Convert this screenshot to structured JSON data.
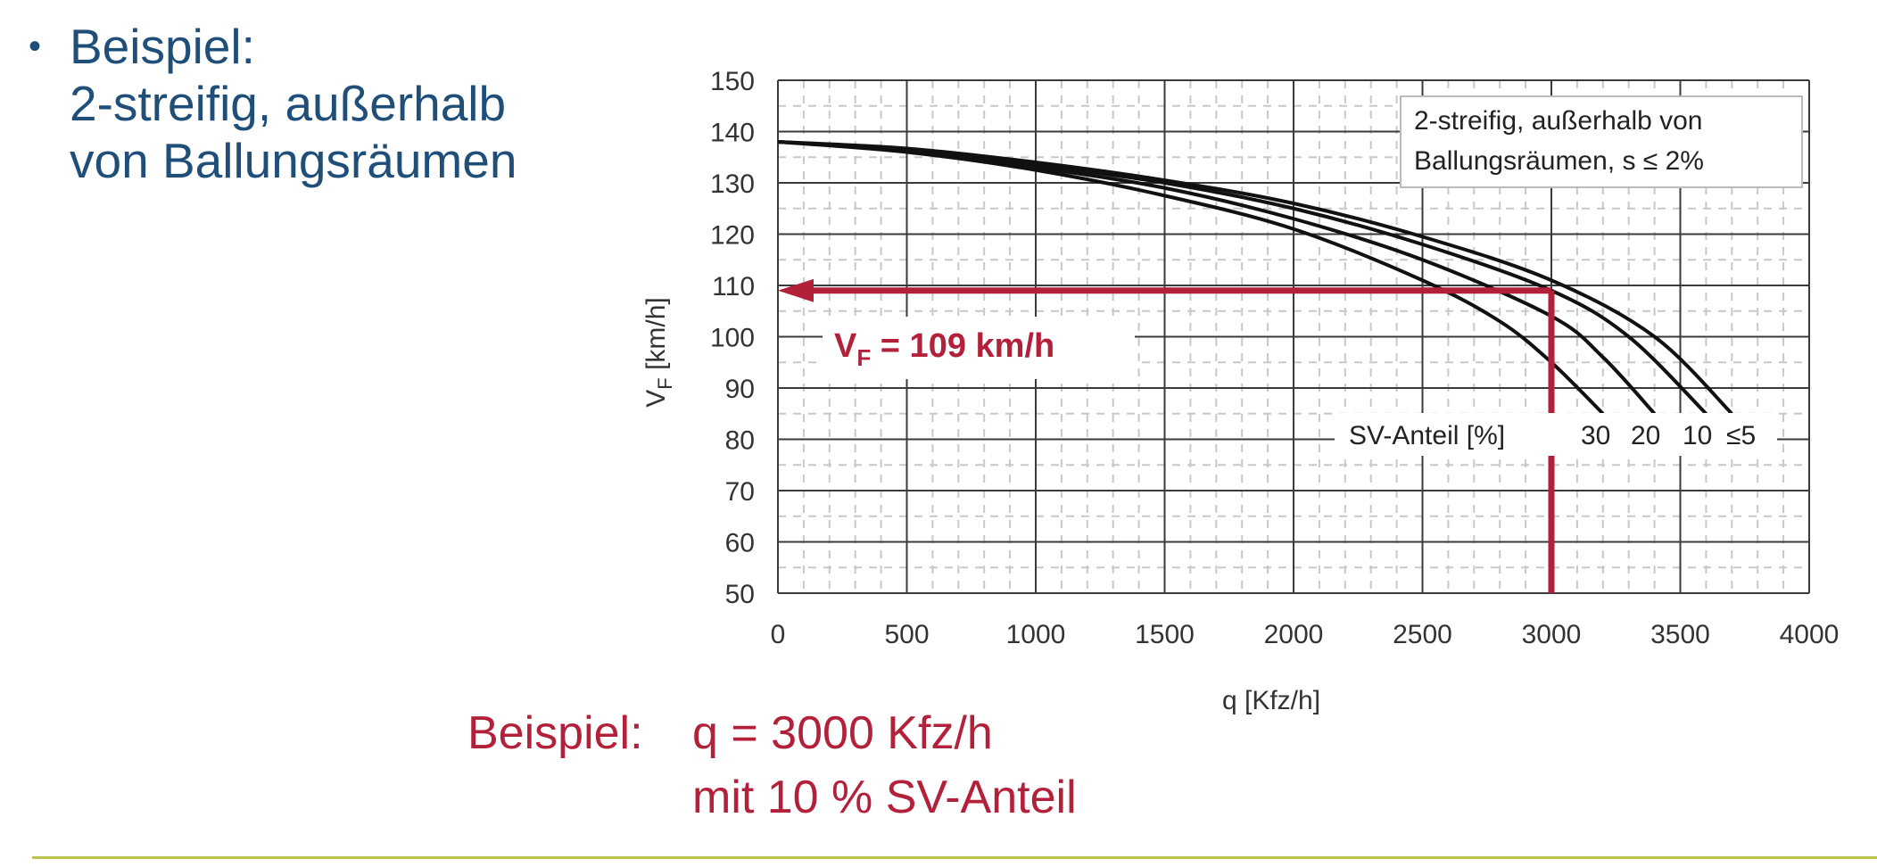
{
  "bullet": {
    "marker": "•",
    "lines": [
      "Beispiel:",
      "2-streifig, außerhalb",
      "von Ballungsräumen"
    ]
  },
  "example": {
    "label": "Beispiel:",
    "line1": "q = 3000 Kfz/h",
    "line2": "mit 10 % SV-Anteil"
  },
  "colors": {
    "title_blue": "#1f4e79",
    "accent_red": "#b2203a",
    "curve_black": "#111111",
    "footer_line": "#b7c34a"
  },
  "chart_data": {
    "type": "line",
    "xlabel": "q [Kfz/h]",
    "ylabel": "VF [km/h]",
    "xlim": [
      0,
      4000
    ],
    "ylim": [
      50,
      150
    ],
    "x_ticks": [
      0,
      500,
      1000,
      1500,
      2000,
      2500,
      3000,
      3500,
      4000
    ],
    "y_ticks": [
      50,
      60,
      70,
      80,
      90,
      100,
      110,
      120,
      130,
      140,
      150
    ],
    "grid": true,
    "legend_box": {
      "line1": "2-streifig, außerhalb von",
      "line2": "Ballungsräumen, s ≤ 2%",
      "placement": "top-right"
    },
    "series_label_prefix": "SV-Anteil [%]",
    "series": [
      {
        "name": "30",
        "x": [
          0,
          500,
          1000,
          1500,
          2000,
          2500,
          2800,
          3000,
          3200
        ],
        "y": [
          138,
          136,
          132.5,
          127.5,
          121,
          111,
          103,
          95,
          85
        ]
      },
      {
        "name": "20",
        "x": [
          0,
          500,
          1000,
          1500,
          2000,
          2500,
          3000,
          3200,
          3400
        ],
        "y": [
          138,
          136.3,
          133,
          129,
          123,
          115,
          104,
          96,
          85
        ]
      },
      {
        "name": "10",
        "x": [
          0,
          500,
          1000,
          1500,
          2000,
          2500,
          3000,
          3300,
          3600
        ],
        "y": [
          138,
          136.5,
          133.5,
          130,
          125,
          118,
          109,
          100,
          85
        ]
      },
      {
        "name": "≤5",
        "x": [
          0,
          500,
          1000,
          1500,
          2000,
          2500,
          3000,
          3400,
          3700
        ],
        "y": [
          138,
          136.7,
          134,
          130.5,
          126,
          119.5,
          111,
          100,
          85
        ]
      }
    ],
    "annotation": {
      "q": 3000,
      "v": 109,
      "label_main": "V",
      "label_sub": "F",
      "label_rest": " = 109 km/h"
    }
  }
}
